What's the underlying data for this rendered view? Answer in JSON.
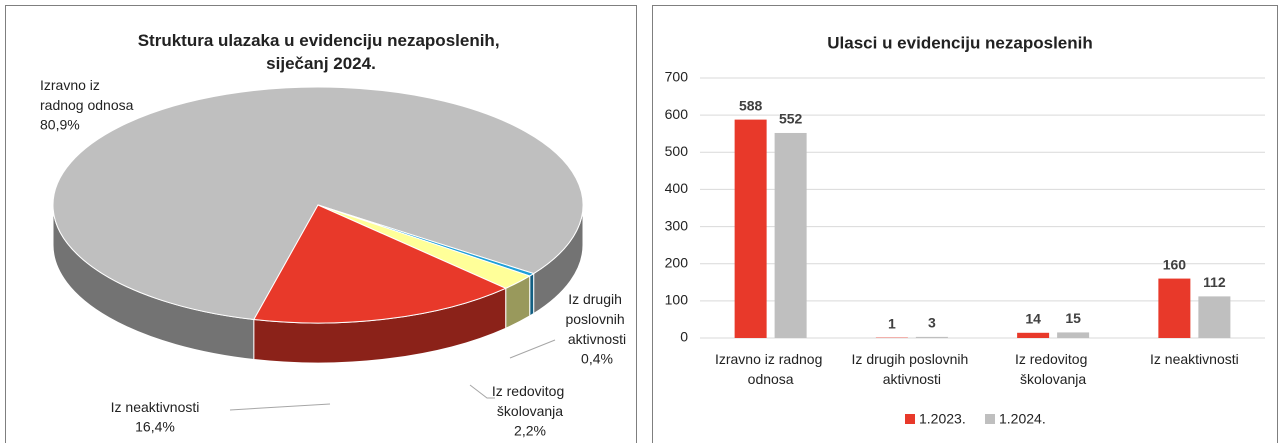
{
  "chart_data": [
    {
      "type": "pie3d",
      "title": "Struktura ulazaka u evidenciju nezaposlenih, siječanj 2024.",
      "categories": [
        "Izravno iz radnog odnosa",
        "Iz drugih poslovnih aktivnosti",
        "Iz redovitog školovanja",
        "Iz neaktivnosti"
      ],
      "values": [
        80.9,
        0.4,
        2.2,
        16.4
      ],
      "value_labels": [
        "80,9%",
        "0,4%",
        "2,2%",
        "16,4%"
      ],
      "colors": [
        "#bfbfbf",
        "#1f9fd8",
        "#ffff99",
        "#e8392a"
      ]
    },
    {
      "type": "bar",
      "title": "Ulasci u evidenciju nezaposlenih",
      "categories": [
        "Izravno iz radnog odnosa",
        "Iz drugih poslovnih aktivnosti",
        "Iz redovitog školovanja",
        "Iz neaktivnosti"
      ],
      "series": [
        {
          "name": "1.2023.",
          "color": "#e8392a",
          "values": [
            588,
            1,
            14,
            160
          ]
        },
        {
          "name": "1.2024.",
          "color": "#bfbfbf",
          "values": [
            552,
            3,
            15,
            112
          ]
        }
      ],
      "ylim": [
        0,
        700
      ],
      "yticks": [
        0,
        100,
        200,
        300,
        400,
        500,
        600,
        700
      ],
      "grid": true,
      "legend": "bottom"
    }
  ]
}
